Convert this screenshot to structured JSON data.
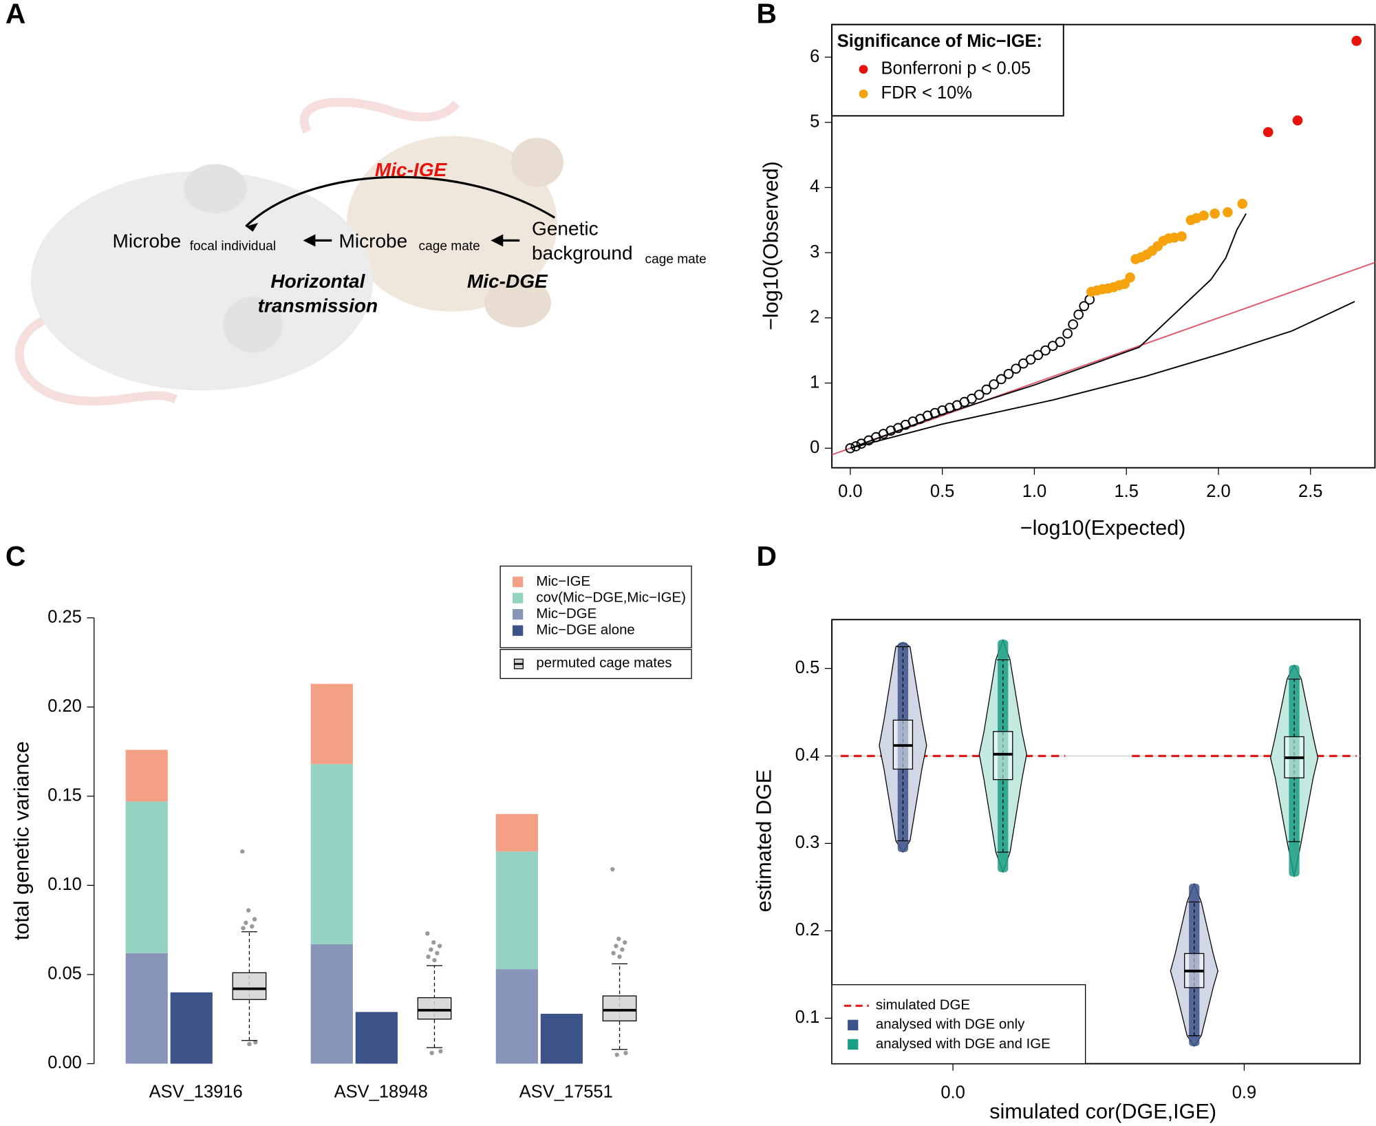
{
  "diagram": {
    "panel_label": "A",
    "edges": {
      "ige": "Mic-IGE",
      "dge": "Mic-DGE",
      "horizontal": [
        "Horizontal",
        "transmission"
      ]
    },
    "nodes": {
      "focal": {
        "label": "Microbe",
        "sub": "focal individual"
      },
      "mate": {
        "label": "Microbe",
        "sub": "cage mate"
      },
      "genetic": {
        "label": [
          "Genetic",
          "background"
        ],
        "sub": "cage mate"
      }
    }
  },
  "chart_data": [
    {
      "type": "scatter",
      "panel_label": "B",
      "xlabel": "−log10(Expected)",
      "ylabel": "−log10(Observed)",
      "xlim": [
        -0.1,
        2.85
      ],
      "ylim": [
        -0.3,
        6.5
      ],
      "xticks": [
        {
          "value": 0,
          "label": "0.0"
        },
        0.5,
        {
          "value": 1,
          "label": "1.0"
        },
        1.5,
        {
          "value": 2,
          "label": "2.0"
        },
        2.5
      ],
      "yticks": [
        0,
        1,
        2,
        3,
        4,
        5,
        6
      ],
      "legend_title": "Significance of Mic−IGE:",
      "legend": "top-left",
      "series": [
        {
          "color": "#000000",
          "marker": "open",
          "x": [
            0,
            0.03,
            0.06,
            0.1,
            0.14,
            0.18,
            0.22,
            0.26,
            0.3,
            0.34,
            0.38,
            0.42,
            0.46,
            0.5,
            0.54,
            0.58,
            0.62,
            0.66,
            0.7,
            0.74,
            0.78,
            0.82,
            0.86,
            0.9,
            0.94,
            0.98,
            1.02,
            1.06,
            1.1,
            1.14,
            1.18,
            1.21,
            1.24,
            1.27,
            1.3
          ],
          "y": [
            0,
            0.03,
            0.07,
            0.12,
            0.17,
            0.22,
            0.27,
            0.31,
            0.36,
            0.41,
            0.45,
            0.5,
            0.54,
            0.58,
            0.62,
            0.66,
            0.71,
            0.76,
            0.82,
            0.9,
            0.98,
            1.06,
            1.14,
            1.22,
            1.3,
            1.36,
            1.43,
            1.5,
            1.57,
            1.63,
            1.76,
            1.9,
            2.05,
            2.18,
            2.28
          ]
        },
        {
          "name": "Bonferroni p < 0.05",
          "color": "#e8120c",
          "marker": "filled",
          "x": [
            2.27,
            2.43,
            2.75
          ],
          "y": [
            4.85,
            5.03,
            6.25
          ]
        },
        {
          "name": "FDR < 10%",
          "color": "#f5a20c",
          "marker": "filled",
          "x": [
            1.31,
            1.34,
            1.37,
            1.4,
            1.43,
            1.46,
            1.49,
            1.52,
            1.55,
            1.58,
            1.61,
            1.64,
            1.67,
            1.7,
            1.73,
            1.76,
            1.8,
            1.85,
            1.88,
            1.92,
            1.98,
            2.05,
            2.13
          ],
          "y": [
            2.4,
            2.42,
            2.44,
            2.45,
            2.47,
            2.5,
            2.52,
            2.62,
            2.9,
            2.93,
            2.97,
            3.03,
            3.1,
            3.18,
            3.22,
            3.23,
            3.25,
            3.5,
            3.53,
            3.57,
            3.6,
            3.62,
            3.75
          ]
        }
      ],
      "lines": [
        {
          "color": "#e0566a",
          "x": [
            -0.1,
            2.85
          ],
          "y": [
            -0.1,
            2.85
          ]
        },
        {
          "color": "#000000",
          "x": [
            0,
            0.5,
            1,
            1.57,
            1.96,
            2.04,
            2.1,
            2.15
          ],
          "y": [
            0,
            0.52,
            0.97,
            1.55,
            2.59,
            2.92,
            3.35,
            3.6
          ]
        },
        {
          "color": "#000000",
          "x": [
            0,
            0.5,
            1.1,
            1.6,
            2.05,
            2.4,
            2.74
          ],
          "y": [
            0,
            0.37,
            0.74,
            1.1,
            1.48,
            1.8,
            2.25
          ]
        }
      ]
    },
    {
      "type": "bar",
      "stacked": true,
      "panel_label": "C",
      "ylabel": "total genetic variance",
      "categories": [
        "ASV_13916",
        "ASV_18948",
        "ASV_17551"
      ],
      "ylim": [
        0,
        0.25
      ],
      "yticks": [
        {
          "value": 0,
          "label": "0.00"
        },
        {
          "value": 0.05,
          "label": "0.05"
        },
        {
          "value": 0.1,
          "label": "0.10"
        },
        {
          "value": 0.15,
          "label": "0.15"
        },
        {
          "value": 0.2,
          "label": "0.20"
        },
        {
          "value": 0.25,
          "label": "0.25"
        }
      ],
      "legend": "top-right",
      "series": [
        {
          "name": "Mic−IGE",
          "color": "#f4a086",
          "stack": "total",
          "values": [
            0.029,
            0.045,
            0.021
          ]
        },
        {
          "name": "cov(Mic−DGE,Mic−IGE)",
          "color": "#94d3c2",
          "stack": "total",
          "values": [
            0.085,
            0.101,
            0.066
          ]
        },
        {
          "name": "Mic−DGE",
          "color": "#8895b8",
          "stack": "total",
          "values": [
            0.062,
            0.067,
            0.053
          ]
        },
        {
          "name": "Mic−DGE alone",
          "color": "#3c538a",
          "stack": "alone",
          "values": [
            0.04,
            0.029,
            0.028
          ]
        }
      ],
      "boxes": {
        "name": "permuted cage mates",
        "color": "#d3d3d3",
        "whisker_low": [
          0.013,
          0.009,
          0.008
        ],
        "q1": [
          0.036,
          0.025,
          0.024
        ],
        "median": [
          0.042,
          0.03,
          0.03
        ],
        "q3": [
          0.051,
          0.037,
          0.038
        ],
        "whisker_high": [
          0.074,
          0.055,
          0.056
        ],
        "outliers": [
          [
            0.119,
            0.086,
            0.081,
            0.079,
            0.077,
            0.076,
            0.011,
            0.012
          ],
          [
            0.073,
            0.068,
            0.066,
            0.064,
            0.062,
            0.06,
            0.058,
            0.007,
            0.006
          ],
          [
            0.109,
            0.07,
            0.068,
            0.066,
            0.064,
            0.062,
            0.06,
            0.006,
            0.005
          ]
        ]
      }
    },
    {
      "type": "violin",
      "panel_label": "D",
      "xlabel": "simulated cor(DGE,IGE)",
      "ylabel": "estimated DGE",
      "categories": [
        "0.0",
        "0.9"
      ],
      "ylim": [
        0.048,
        0.556
      ],
      "yticks": [
        0.1,
        0.2,
        0.3,
        0.4,
        0.5
      ],
      "legend": "bottom-left",
      "reference": {
        "name": "simulated DGE",
        "value": 0.4,
        "color": "#e31a1c"
      },
      "series": [
        {
          "name": "analysed with DGE only",
          "color": "#3c538a",
          "fill": "#d2d7e5",
          "min": [
            0.29,
            0.068
          ],
          "whisker_low": [
            0.303,
            0.08
          ],
          "q1": [
            0.385,
            0.135
          ],
          "median": [
            0.412,
            0.154
          ],
          "q3": [
            0.441,
            0.174
          ],
          "whisker_high": [
            0.525,
            0.233
          ],
          "max": [
            0.53,
            0.254
          ]
        },
        {
          "name": "analysed with DGE and IGE",
          "color": "#1a9e85",
          "fill": "#c4e9e0",
          "min": [
            0.267,
            0.262
          ],
          "whisker_low": [
            0.29,
            0.302
          ],
          "q1": [
            0.373,
            0.375
          ],
          "median": [
            0.402,
            0.398
          ],
          "q3": [
            0.428,
            0.422
          ],
          "whisker_high": [
            0.51,
            0.488
          ],
          "max": [
            0.533,
            0.504
          ]
        }
      ]
    }
  ]
}
